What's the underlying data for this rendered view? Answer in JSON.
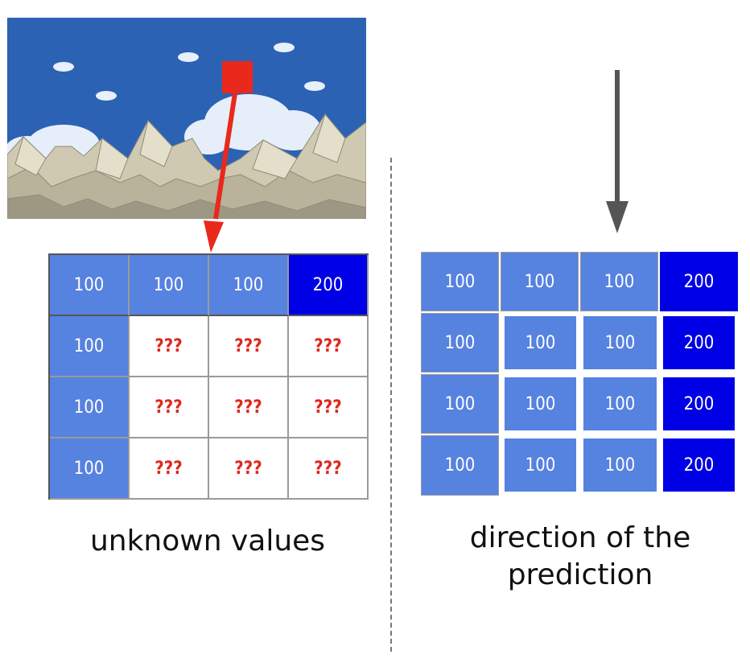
{
  "colors": {
    "sky": "#2b62b4",
    "light_cell": "#5682e0",
    "dark_cell": "#0000e6",
    "unknown_text": "#e0261c",
    "arrow_red": "#e8291c",
    "arrow_gray": "#555555"
  },
  "left_grid": {
    "rows": [
      [
        "100",
        "100",
        "100",
        "200"
      ],
      [
        "100",
        "???",
        "???",
        "???"
      ],
      [
        "100",
        "???",
        "???",
        "???"
      ],
      [
        "100",
        "???",
        "???",
        "???"
      ]
    ]
  },
  "right_grid": {
    "rows": [
      [
        "100",
        "100",
        "100",
        "200"
      ],
      [
        "100",
        "100",
        "100",
        "200"
      ],
      [
        "100",
        "100",
        "100",
        "200"
      ],
      [
        "100",
        "100",
        "100",
        "200"
      ]
    ]
  },
  "captions": {
    "left": "unknown values",
    "right_line1": "direction of the",
    "right_line2": "prediction"
  },
  "icons": {
    "scene": "game-sky-mountains-scene",
    "pointer": "red-square-marker",
    "arrow_left": "red-arrow-icon",
    "arrow_right": "gray-down-arrow-icon"
  }
}
